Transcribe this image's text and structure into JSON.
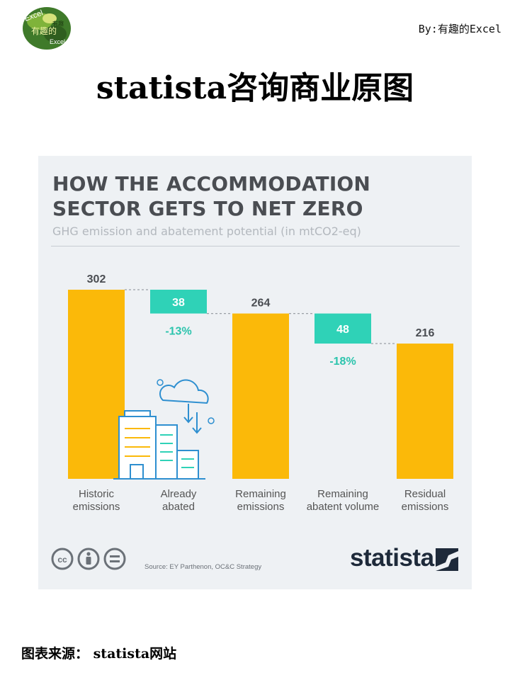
{
  "header": {
    "logo_text": "Excel 有趣的",
    "byline": "By:有趣的Excel",
    "main_title": "statista咨询商业原图"
  },
  "chart_data": {
    "type": "bar",
    "title": "HOW THE ACCOMMODATION SECTOR GETS TO NET ZERO",
    "subtitle": "GHG emission and abatement potential (in mtCO2-eq)",
    "categories": [
      {
        "label": "Historic\nemissions",
        "lines": [
          "Historic",
          "emissions"
        ]
      },
      {
        "label": "Already\nabated",
        "lines": [
          "Already",
          "abated"
        ]
      },
      {
        "label": "Remaining\nemissions",
        "lines": [
          "Remaining",
          "emissions"
        ]
      },
      {
        "label": "Remaining\nabatent volume",
        "lines": [
          "Remaining",
          "abatent volume"
        ]
      },
      {
        "label": "Residual\nemissions",
        "lines": [
          "Residual",
          "emissions"
        ]
      }
    ],
    "bars": [
      {
        "kind": "total",
        "start": 0,
        "end": 302,
        "value_label": "302"
      },
      {
        "kind": "reduction",
        "start": 264,
        "end": 302,
        "value_label": "38",
        "pct_label": "-13%"
      },
      {
        "kind": "total",
        "start": 0,
        "end": 264,
        "value_label": "264"
      },
      {
        "kind": "reduction",
        "start": 216,
        "end": 264,
        "value_label": "48",
        "pct_label": "-18%"
      },
      {
        "kind": "total",
        "start": 0,
        "end": 216,
        "value_label": "216"
      }
    ],
    "ylim": [
      0,
      302
    ],
    "colors": {
      "total": "#fbb909",
      "reduction": "#2fd2b7",
      "pct_text": "#2cc4ad",
      "value_text": "#4a4d52",
      "connector": "#9aa0a6"
    },
    "illustration": "city-buildings-cloud-download-icon"
  },
  "footer_card": {
    "license_icons": [
      "cc-icon",
      "by-person-icon",
      "equals-icon"
    ],
    "source": "Source: EY Parthenon, OC&C Strategy",
    "brand": "statista"
  },
  "footer": {
    "text": "图表来源： statista网站"
  }
}
